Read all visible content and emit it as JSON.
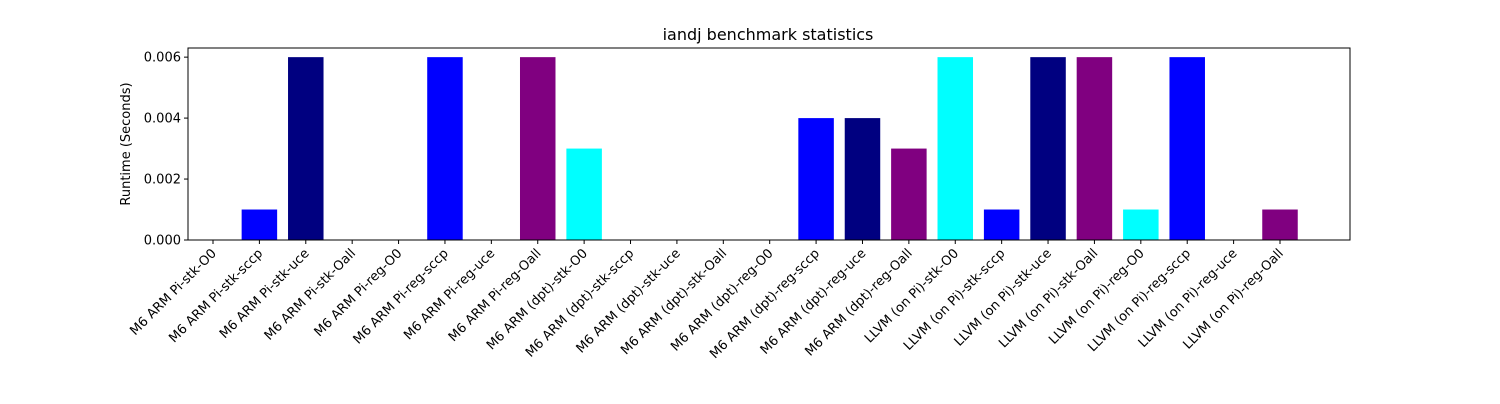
{
  "chart_data": {
    "type": "bar",
    "title": "iandj benchmark statistics",
    "xlabel": "",
    "ylabel": "Runtime (Seconds)",
    "ylim": [
      0,
      0.0063
    ],
    "yticks": [
      "0.000",
      "0.002",
      "0.004",
      "0.006"
    ],
    "ytick_values": [
      0,
      0.002,
      0.004,
      0.006
    ],
    "grid": false,
    "categories": [
      "M6 ARM Pi-stk-O0",
      "M6 ARM Pi-stk-sccp",
      "M6 ARM Pi-stk-uce",
      "M6 ARM Pi-stk-Oall",
      "M6 ARM Pi-reg-O0",
      "M6 ARM Pi-reg-sccp",
      "M6 ARM Pi-reg-uce",
      "M6 ARM Pi-reg-Oall",
      "M6 ARM (dpt)-stk-O0",
      "M6 ARM (dpt)-stk-sccp",
      "M6 ARM (dpt)-stk-uce",
      "M6 ARM (dpt)-stk-Oall",
      "M6 ARM (dpt)-reg-O0",
      "M6 ARM (dpt)-reg-sccp",
      "M6 ARM (dpt)-reg-uce",
      "M6 ARM (dpt)-reg-Oall",
      "LLVM (on Pi)-stk-O0",
      "LLVM (on Pi)-stk-sccp",
      "LLVM (on Pi)-stk-uce",
      "LLVM (on Pi)-stk-Oall",
      "LLVM (on Pi)-reg-O0",
      "LLVM (on Pi)-reg-sccp",
      "LLVM (on Pi)-reg-uce",
      "LLVM (on Pi)-reg-Oall"
    ],
    "values": [
      0,
      0.001,
      0.006,
      0,
      0,
      0.006,
      0,
      0.006,
      0.003,
      0,
      0,
      0,
      0,
      0.004,
      0.004,
      0.003,
      0.006,
      0.001,
      0.006,
      0.006,
      0.001,
      0.006,
      0,
      0.001
    ],
    "colors": [
      "#00ffff",
      "#0000ff",
      "#000080",
      "#800080",
      "#00ffff",
      "#0000ff",
      "#000080",
      "#800080",
      "#00ffff",
      "#0000ff",
      "#000080",
      "#800080",
      "#00ffff",
      "#0000ff",
      "#000080",
      "#800080",
      "#00ffff",
      "#0000ff",
      "#000080",
      "#800080",
      "#00ffff",
      "#0000ff",
      "#000080",
      "#800080"
    ]
  }
}
